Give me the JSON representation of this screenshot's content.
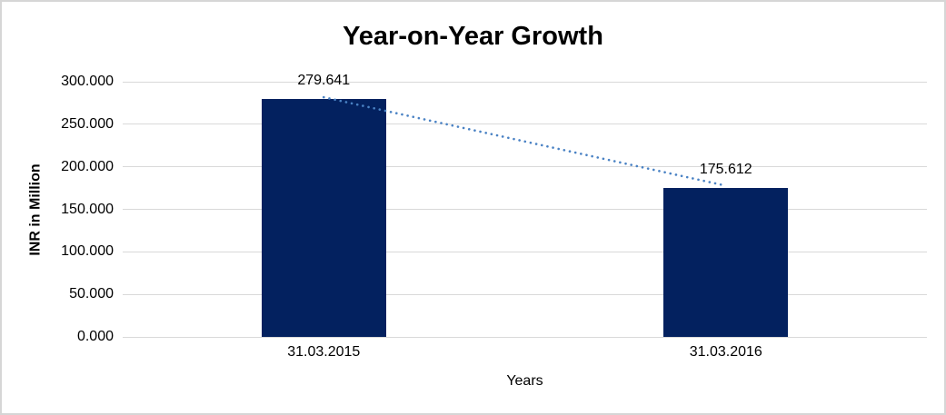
{
  "chart_data": {
    "type": "bar",
    "title": "Year-on-Year Growth",
    "xlabel": "Years",
    "ylabel": "INR in Million",
    "categories": [
      "31.03.2015",
      "31.03.2016"
    ],
    "values": [
      279.641,
      175.612
    ],
    "data_labels": [
      "279.641",
      "175.612"
    ],
    "y_ticks": [
      0,
      50,
      100,
      150,
      200,
      250,
      300
    ],
    "y_tick_labels": [
      "0.000",
      "50.000",
      "100.000",
      "150.000",
      "200.000",
      "250.000",
      "300.000"
    ],
    "ylim": [
      0,
      300
    ],
    "grid": true,
    "legend": "none",
    "bar_color": "#03215f",
    "gridline_color": "#d9d9d9",
    "trendline": {
      "type": "linear",
      "style": "dotted",
      "color": "#4a82c4"
    }
  }
}
